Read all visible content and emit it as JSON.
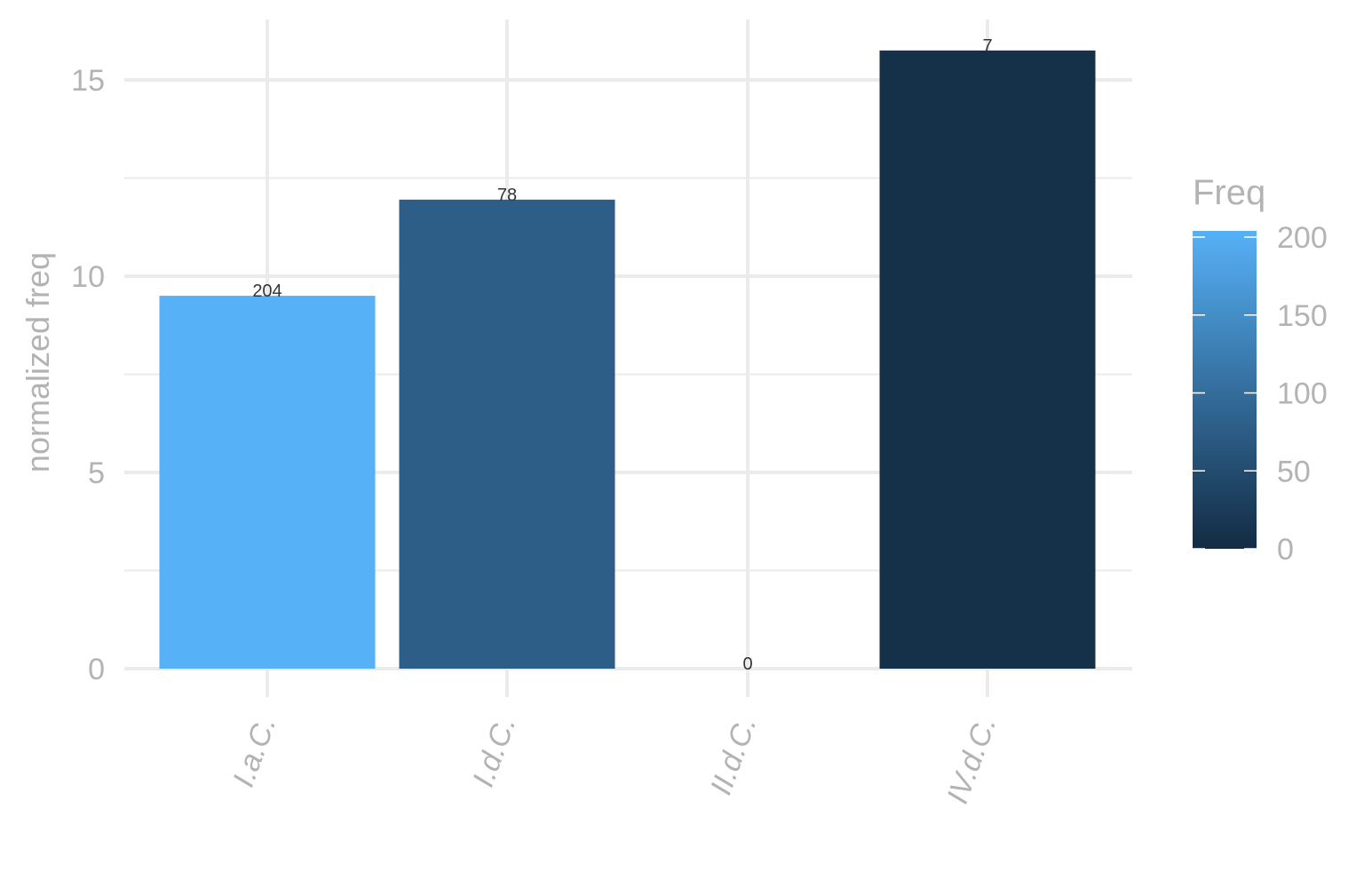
{
  "chart_data": {
    "type": "bar",
    "categories": [
      "I.a.C.",
      "I.d.C.",
      "II.d.C.",
      "IV.d.C."
    ],
    "values": [
      9.5,
      11.95,
      0,
      15.75
    ],
    "freq": [
      204,
      78,
      0,
      7
    ],
    "data_labels": [
      "204",
      "78",
      "0",
      "7"
    ],
    "ylabel": "normalized freq",
    "xlabel": "",
    "ylim": [
      0,
      16
    ],
    "yticks": [
      0,
      5,
      10,
      15
    ],
    "grid": true,
    "legend": {
      "title": "Freq",
      "placement": "right",
      "range": [
        0,
        204
      ],
      "ticks": [
        0,
        50,
        100,
        150,
        200
      ],
      "tick_labels": [
        "0",
        "50",
        "100",
        "150",
        "200"
      ],
      "color_low": "#132B43",
      "color_high": "#56B1F7"
    }
  }
}
